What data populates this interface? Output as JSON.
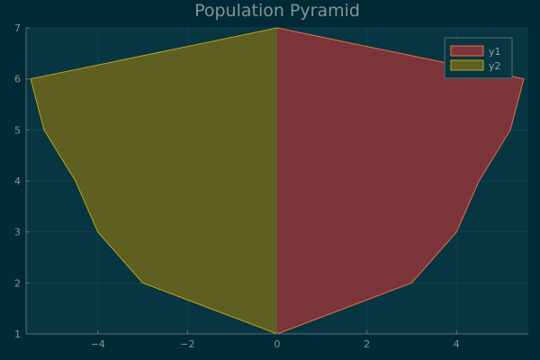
{
  "chart_data": {
    "type": "area",
    "title": "Population Pyramid",
    "xlabel": "",
    "ylabel": "",
    "xlim": [
      -5.6,
      5.6
    ],
    "ylim": [
      1,
      7
    ],
    "x_ticks": [
      -4,
      -2,
      0,
      2,
      4
    ],
    "x_tick_labels": [
      "−4",
      "−2",
      "0",
      "2",
      "4"
    ],
    "y_ticks": [
      1,
      2,
      3,
      4,
      5,
      6,
      7
    ],
    "y_tick_labels": [
      "1",
      "2",
      "3",
      "4",
      "5",
      "6",
      "7"
    ],
    "grid": true,
    "legend_position": "top-right",
    "series": [
      {
        "name": "y1",
        "color": "#e26f46",
        "fill": "#7a343a",
        "x": [
          0,
          3,
          4,
          4.5,
          5.2,
          5.5,
          0
        ],
        "y": [
          1,
          2,
          3,
          4,
          5,
          6,
          7
        ]
      },
      {
        "name": "y2",
        "color": "#b9a41f",
        "fill": "#5e5f20",
        "x": [
          0,
          -3,
          -4,
          -4.5,
          -5.2,
          -5.5,
          0
        ],
        "y": [
          1,
          2,
          3,
          4,
          5,
          6,
          7
        ]
      }
    ],
    "colors": {
      "background": "#002b36",
      "plot_area": "#073642",
      "grid": "#0d4450",
      "axis": "#586e75",
      "text": "#839496",
      "legend_bg": "#073642",
      "legend_border": "#586e75"
    }
  }
}
